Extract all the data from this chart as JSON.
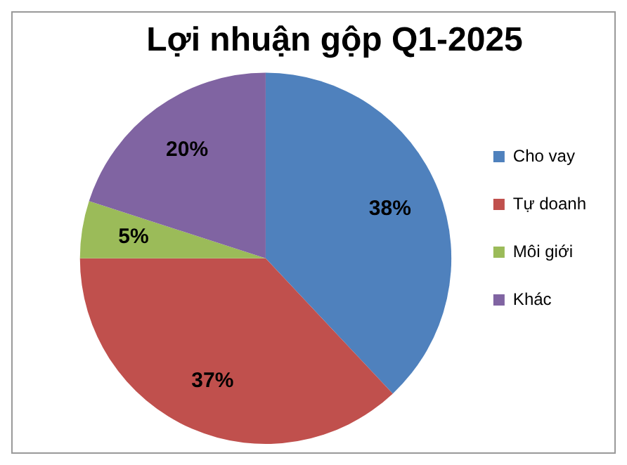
{
  "chart_data": {
    "type": "pie",
    "title": "Lợi nhuận gộp Q1-2025",
    "categories": [
      "Cho vay",
      "Tự doanh",
      "Môi giới",
      "Khác"
    ],
    "values": [
      38,
      37,
      5,
      20
    ],
    "value_labels": [
      "38%",
      "37%",
      "5%",
      "20%"
    ],
    "colors": [
      "#4f81bd",
      "#c0504d",
      "#9bbb59",
      "#8064a2"
    ],
    "legend": "right"
  }
}
